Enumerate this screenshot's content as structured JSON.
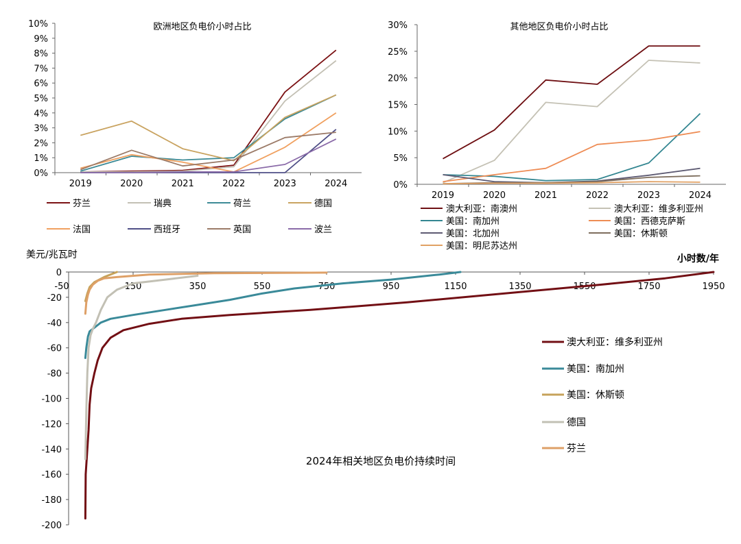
{
  "colors": {
    "finland": "#7b1113",
    "sweden": "#c3c0b4",
    "netherlands": "#3c8a96",
    "germany": "#c9a360",
    "france": "#f0a05f",
    "spain": "#4e4e86",
    "uk": "#9b7a67",
    "poland": "#8a6aa8",
    "sa": "#6e0f12",
    "vic": "#c4c1b4",
    "socal": "#338691",
    "westtx": "#ee8c54",
    "norcal": "#5d5a72",
    "houston": "#7d6d5c",
    "minnesota": "#e0a063",
    "c3_vic": "#720f14",
    "c3_socal": "#3a8a99",
    "c3_houston": "#c6a25a",
    "c3_germany": "#c2c0b4",
    "c3_finland": "#dea067"
  },
  "chart_data": [
    {
      "id": "europe",
      "type": "line",
      "title": "欧洲地区负电价小时占比",
      "x": [
        "2019",
        "2020",
        "2021",
        "2022",
        "2023",
        "2024"
      ],
      "ylim": [
        0,
        10
      ],
      "y_ticks": [
        "0%",
        "1%",
        "2%",
        "3%",
        "4%",
        "5%",
        "6%",
        "7%",
        "8%",
        "9%",
        "10%"
      ],
      "series": [
        {
          "name": "芬兰",
          "key": "finland",
          "values": [
            0.05,
            0.1,
            0.15,
            0.5,
            5.4,
            8.2
          ]
        },
        {
          "name": "瑞典",
          "key": "sweden",
          "values": [
            0.05,
            0.05,
            0.1,
            0.4,
            4.8,
            7.5
          ]
        },
        {
          "name": "荷兰",
          "key": "netherlands",
          "values": [
            0.1,
            1.1,
            0.85,
            1.0,
            3.6,
            5.2
          ]
        },
        {
          "name": "德国",
          "key": "germany",
          "values": [
            2.5,
            3.45,
            1.6,
            0.8,
            3.7,
            5.2
          ]
        },
        {
          "name": "法国",
          "key": "france",
          "values": [
            0.3,
            1.2,
            0.7,
            0.05,
            1.7,
            4.0
          ]
        },
        {
          "name": "西班牙",
          "key": "spain",
          "values": [
            0.0,
            0.0,
            0.0,
            0.0,
            0.0,
            2.9
          ]
        },
        {
          "name": "英国",
          "key": "uk",
          "values": [
            0.2,
            1.5,
            0.45,
            0.85,
            2.35,
            2.7
          ]
        },
        {
          "name": "波兰",
          "key": "poland",
          "values": [
            0.0,
            0.0,
            0.05,
            0.05,
            0.55,
            2.25
          ]
        }
      ]
    },
    {
      "id": "other",
      "type": "line",
      "title": "其他地区负电价小时占比",
      "x": [
        "2019",
        "2020",
        "2021",
        "2022",
        "2023",
        "2024"
      ],
      "ylim": [
        0,
        30
      ],
      "y_ticks": [
        "0%",
        "5%",
        "10%",
        "15%",
        "20%",
        "25%",
        "30%"
      ],
      "series": [
        {
          "name": "澳大利亚：南澳州",
          "key": "sa",
          "values": [
            4.8,
            10.2,
            19.6,
            18.8,
            26.0,
            26.0
          ]
        },
        {
          "name": "澳大利亚：维多利亚州",
          "key": "vic",
          "values": [
            0.3,
            4.5,
            15.4,
            14.6,
            23.3,
            22.8
          ]
        },
        {
          "name": "美国：南加州",
          "key": "socal",
          "values": [
            1.8,
            1.5,
            0.7,
            0.9,
            4.0,
            13.3
          ]
        },
        {
          "name": "美国：西德克萨斯",
          "key": "westtx",
          "values": [
            0.5,
            1.8,
            3.0,
            7.5,
            8.3,
            9.9
          ]
        },
        {
          "name": "美国：北加州",
          "key": "norcal",
          "values": [
            1.8,
            0.5,
            0.3,
            0.6,
            1.7,
            3.0
          ]
        },
        {
          "name": "美国：休斯顿",
          "key": "houston",
          "values": [
            0.1,
            0.3,
            0.3,
            0.5,
            1.3,
            1.6
          ]
        },
        {
          "name": "美国：明尼苏达州",
          "key": "minnesota",
          "values": [
            0.1,
            0.2,
            0.2,
            0.3,
            0.5,
            0.4
          ]
        }
      ]
    },
    {
      "id": "duration",
      "type": "line",
      "title": "2024年相关地区负电价持续时间",
      "xlabel": "小时数/年",
      "ylabel": "美元/兆瓦时",
      "xlim": [
        -50,
        1950
      ],
      "ylim": [
        -200,
        0
      ],
      "x_ticks": [
        "-50",
        "150",
        "350",
        "550",
        "750",
        "950",
        "1150",
        "1350",
        "1550",
        "1750",
        "1950"
      ],
      "y_ticks": [
        "0",
        "-20",
        "-40",
        "-60",
        "-80",
        "-100",
        "-120",
        "-140",
        "-160",
        "-180",
        "-200"
      ],
      "series": [
        {
          "name": "澳大利亚：维多利亚州",
          "key": "c3_vic",
          "points": [
            [
              2,
              -195
            ],
            [
              3,
              -160
            ],
            [
              8,
              -140
            ],
            [
              12,
              -125
            ],
            [
              15,
              -105
            ],
            [
              20,
              -92
            ],
            [
              30,
              -80
            ],
            [
              40,
              -70
            ],
            [
              55,
              -60
            ],
            [
              80,
              -52
            ],
            [
              120,
              -46
            ],
            [
              200,
              -41
            ],
            [
              300,
              -37
            ],
            [
              450,
              -34
            ],
            [
              700,
              -30
            ],
            [
              1000,
              -24
            ],
            [
              1300,
              -17
            ],
            [
              1600,
              -10
            ],
            [
              1800,
              -5
            ],
            [
              1950,
              0
            ]
          ]
        },
        {
          "name": "美国：南加州",
          "key": "c3_socal",
          "points": [
            [
              2,
              -68
            ],
            [
              5,
              -60
            ],
            [
              10,
              -51
            ],
            [
              15,
              -47
            ],
            [
              30,
              -44
            ],
            [
              50,
              -40
            ],
            [
              80,
              -37
            ],
            [
              150,
              -34
            ],
            [
              250,
              -30
            ],
            [
              350,
              -26
            ],
            [
              450,
              -22
            ],
            [
              550,
              -17
            ],
            [
              650,
              -13
            ],
            [
              800,
              -9
            ],
            [
              950,
              -6
            ],
            [
              1100,
              -2
            ],
            [
              1165,
              0
            ]
          ]
        },
        {
          "name": "美国：休斯顿",
          "key": "c3_houston",
          "points": [
            [
              2,
              -23
            ],
            [
              8,
              -17
            ],
            [
              15,
              -12
            ],
            [
              30,
              -8
            ],
            [
              60,
              -4
            ],
            [
              100,
              0
            ]
          ]
        },
        {
          "name": "德国",
          "key": "c3_germany",
          "points": [
            [
              2,
              -148
            ],
            [
              5,
              -110
            ],
            [
              8,
              -80
            ],
            [
              12,
              -60
            ],
            [
              18,
              -50
            ],
            [
              25,
              -45
            ],
            [
              35,
              -40
            ],
            [
              50,
              -30
            ],
            [
              70,
              -20
            ],
            [
              100,
              -14
            ],
            [
              150,
              -9
            ],
            [
              250,
              -6
            ],
            [
              350,
              -3
            ]
          ]
        },
        {
          "name": "芬兰",
          "key": "c3_finland",
          "points": [
            [
              2,
              -33
            ],
            [
              5,
              -24
            ],
            [
              10,
              -18
            ],
            [
              15,
              -14
            ],
            [
              25,
              -10
            ],
            [
              40,
              -7
            ],
            [
              60,
              -5
            ],
            [
              100,
              -4
            ],
            [
              200,
              -2
            ],
            [
              400,
              -1
            ],
            [
              750,
              -0.5
            ]
          ]
        }
      ]
    }
  ]
}
